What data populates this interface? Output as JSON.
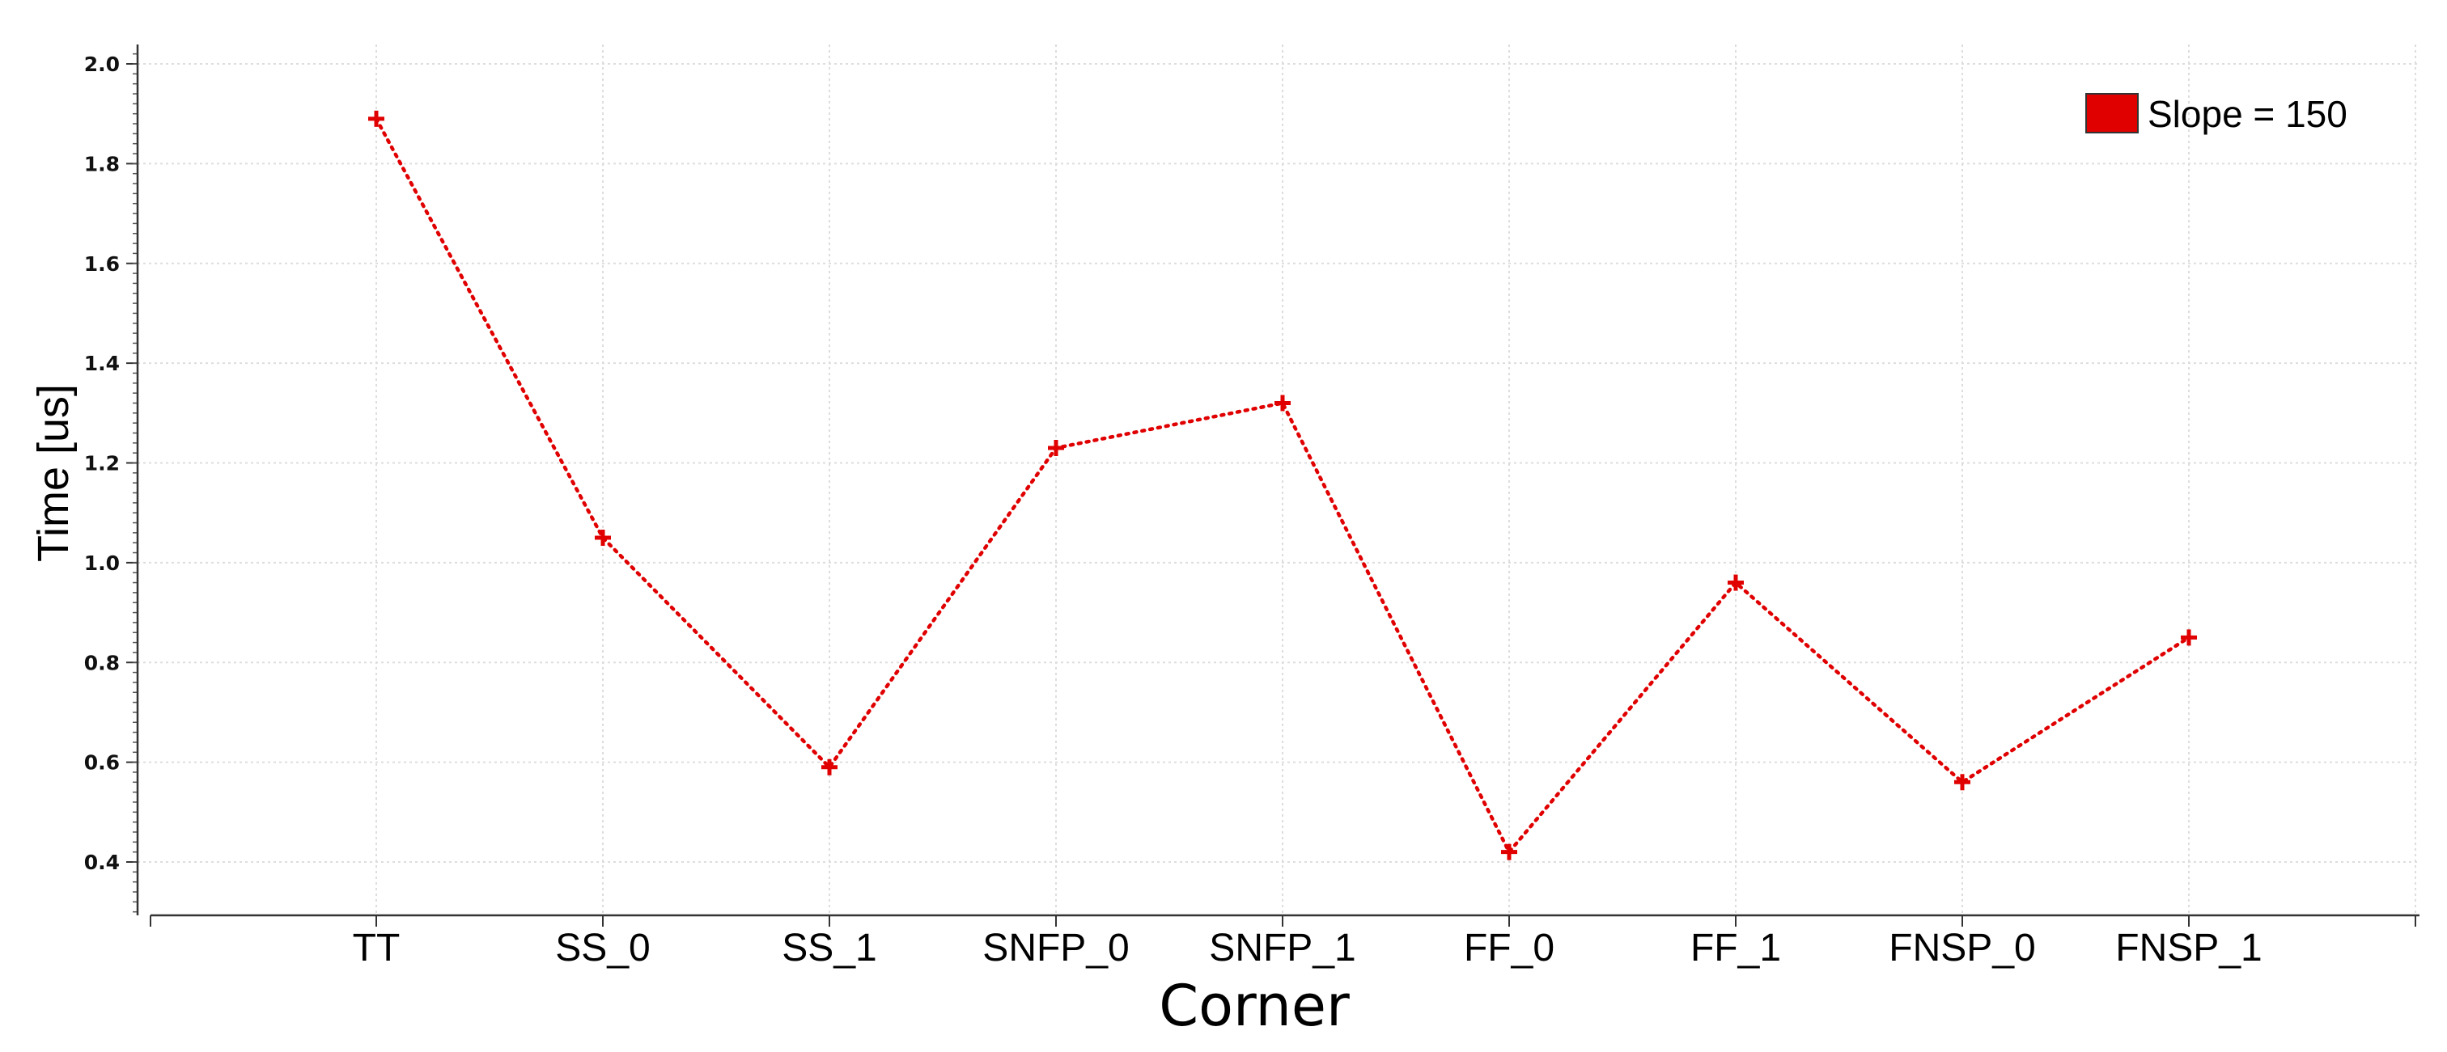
{
  "chart_data": {
    "type": "line",
    "categories": [
      "TT",
      "SS_0",
      "SS_1",
      "SNFP_0",
      "SNFP_1",
      "FF_0",
      "FF_1",
      "FNSP_0",
      "FNSP_1"
    ],
    "series": [
      {
        "name": "Slope = 150",
        "color": "#e00000",
        "line_style": "dotted",
        "marker": "plus",
        "values": [
          1.89,
          1.05,
          0.59,
          1.23,
          1.32,
          0.42,
          0.96,
          0.56,
          0.85
        ]
      }
    ],
    "xlabel": "Corner",
    "ylabel": "Time [us]",
    "ylim": [
      0.25,
      2.03
    ],
    "yticks": [
      "0.4",
      "0.6",
      "0.8",
      "1.0",
      "1.2",
      "1.4",
      "1.6",
      "1.8",
      "2.0"
    ],
    "grid": true,
    "legend_position": "top-right"
  }
}
